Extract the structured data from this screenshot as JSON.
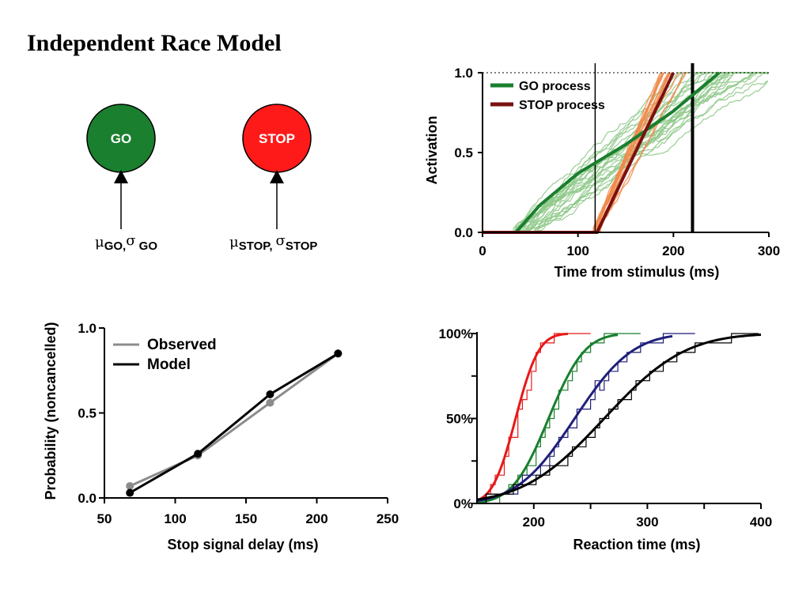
{
  "title": "Independent Race Model",
  "colors": {
    "go": "#1a7f2e",
    "stop_node": "#ff1a1a",
    "stop_line": "#7a1010",
    "orange": "#f08a4b",
    "light_green": "#8fc98a",
    "navy": "#1f1f7a",
    "gray": "#8c8c8c"
  },
  "diagram": {
    "go_node": {
      "label": "GO",
      "param_mu": "μ",
      "param_mu_sub": "GO",
      "param_sep": ",",
      "param_sigma": "σ",
      "param_sigma_sub": " GO"
    },
    "stop_node": {
      "label": "STOP",
      "param_mu": "μ",
      "param_mu_sub": "STOP,",
      "param_sigma": "σ",
      "param_sigma_sub": "STOP"
    }
  },
  "chart_data": [
    {
      "type": "line",
      "panel": "activation",
      "xlabel": "Time from stimulus (ms)",
      "ylabel": "Activation",
      "xlim": [
        0,
        300
      ],
      "ylim": [
        0,
        1
      ],
      "xticks": [
        0,
        100,
        200,
        300
      ],
      "yticks": [
        0.0,
        0.5,
        1.0
      ],
      "ytick_labels": [
        "0.0",
        "0.5",
        "1.0"
      ],
      "threshold": 1.0,
      "vlines": [
        118,
        220
      ],
      "series": [
        {
          "name": "GO process",
          "color": "#1a7f2e",
          "x": [
            0,
            35,
            60,
            100,
            150,
            200,
            248
          ],
          "y": [
            0,
            0,
            0.17,
            0.37,
            0.55,
            0.76,
            1.0
          ]
        },
        {
          "name": "STOP process",
          "color": "#7a1010",
          "x": [
            0,
            120,
            200
          ],
          "y": [
            0,
            0,
            1.0
          ]
        }
      ],
      "legend_position": "top-left"
    },
    {
      "type": "line",
      "panel": "inhibition",
      "xlabel": "Stop signal delay (ms)",
      "ylabel": "Probability (noncancelled)",
      "xlim": [
        50,
        250
      ],
      "ylim": [
        0,
        1
      ],
      "xticks": [
        50,
        100,
        150,
        200,
        250
      ],
      "yticks": [
        0.0,
        0.5,
        1.0
      ],
      "ytick_labels": [
        "0.0",
        "0.5",
        "1.0"
      ],
      "series": [
        {
          "name": "Observed",
          "color": "#8c8c8c",
          "x": [
            68,
            116,
            167,
            215
          ],
          "y": [
            0.07,
            0.25,
            0.56,
            0.85
          ]
        },
        {
          "name": "Model",
          "color": "#000000",
          "x": [
            68,
            116,
            167,
            215
          ],
          "y": [
            0.03,
            0.26,
            0.61,
            0.85
          ]
        }
      ],
      "legend_position": "top-left"
    },
    {
      "type": "line",
      "panel": "rt-distributions",
      "xlabel": "Reaction time (ms)",
      "ylabel": "",
      "xlim": [
        150,
        400
      ],
      "ylim": [
        0,
        100
      ],
      "xticks": [
        200,
        300,
        400
      ],
      "yticks": [
        0,
        50,
        100
      ],
      "ytick_labels": [
        "0%",
        "50%",
        "100%"
      ],
      "series": [
        {
          "color": "#e81818",
          "mean": 184,
          "sd": 16,
          "xmax": 230
        },
        {
          "color": "#1a7f2e",
          "mean": 213,
          "sd": 25,
          "xmax": 275
        },
        {
          "color": "#1f1f7a",
          "mean": 236,
          "sd": 40,
          "xmax": 322
        },
        {
          "color": "#000000",
          "mean": 262,
          "sd": 56,
          "xmax": 400
        }
      ]
    }
  ]
}
